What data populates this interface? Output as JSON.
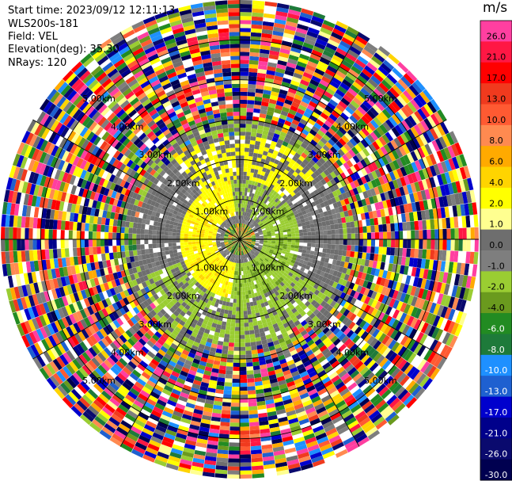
{
  "header": {
    "start_time": "Start time: 2023/09/12 12:11:13",
    "instrument": "WLS200s-181",
    "field": "Field: VEL",
    "elevation": "Elevation(deg): 35.30",
    "nrays": "NRays: 120"
  },
  "chart_data": {
    "type": "heatmap",
    "projection": "polar-ppi",
    "field": "VEL",
    "units": "m/s",
    "nrays": 120,
    "range_ring_labels": [
      "1.00km",
      "2.00km",
      "3.00km",
      "4.00km",
      "5.00km"
    ],
    "range_rings_km": [
      1,
      2,
      3,
      4,
      5
    ],
    "max_range_km": 6,
    "colorbar": {
      "unit_label": "m/s",
      "ticks": [
        "26.0",
        "21.0",
        "17.0",
        "13.0",
        "10.0",
        "8.0",
        "6.0",
        "4.0",
        "2.0",
        "1.0",
        "0.0",
        "-1.0",
        "-2.0",
        "-4.0",
        "-6.0",
        "-8.0",
        "-10.0",
        "-13.0",
        "-17.0",
        "-21.0",
        "-26.0",
        "-30.0"
      ],
      "colors": [
        "#ff3fa0",
        "#ff1744",
        "#ff0000",
        "#f03a1e",
        "#ff5a32",
        "#ff8a50",
        "#ffaa00",
        "#ffd400",
        "#ffff00",
        "#ffff90",
        "#6e6e6e",
        "#7e7e7e",
        "#9acd32",
        "#6a9a1e",
        "#228b22",
        "#1e7a3a",
        "#1e90ff",
        "#1e60d0",
        "#0000cd",
        "#00008b",
        "#0a0a6e",
        "#000050"
      ]
    },
    "near_field": {
      "pattern": "inner ~2.5 km shows gray (~0 m/s) background, yellow (+2 to +4 m/s) arc to the west/north and green (-2 to -4 m/s) arc to the east/south; outer ranges noisy multicolor"
    }
  }
}
